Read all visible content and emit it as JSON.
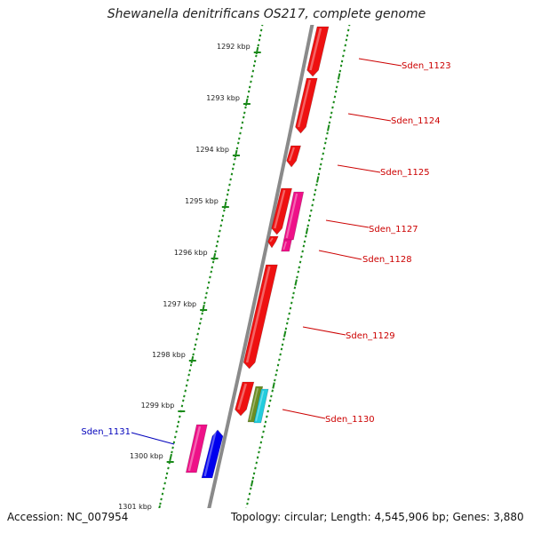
{
  "title": "Shewanella denitrificans OS217, complete genome",
  "footer": {
    "accession": "Accession: NC_007954",
    "topology": "Topology: circular; Length: 4,545,906 bp; Genes: 3,880"
  },
  "colors": {
    "genome_line": "#8a8a8a",
    "scale_marks": "#1a8a1a",
    "label_forward": "#cc0000",
    "label_reverse": "#0000bb"
  },
  "scale": {
    "ticks": [
      "1292 kbp",
      "1293 kbp",
      "1294 kbp",
      "1295 kbp",
      "1296 kbp",
      "1297 kbp",
      "1298 kbp",
      "1299 kbp",
      "1300 kbp",
      "1301 kbp"
    ]
  },
  "gene_labels": [
    {
      "text": "Sden_1123",
      "strand": "forward"
    },
    {
      "text": "Sden_1124",
      "strand": "forward"
    },
    {
      "text": "Sden_1125",
      "strand": "forward"
    },
    {
      "text": "Sden_1127",
      "strand": "forward"
    },
    {
      "text": "Sden_1128",
      "strand": "forward"
    },
    {
      "text": "Sden_1129",
      "strand": "forward"
    },
    {
      "text": "Sden_1130",
      "strand": "forward"
    },
    {
      "text": "Sden_1131",
      "strand": "reverse"
    }
  ],
  "features": [
    {
      "type": "gene",
      "color": "#ee1111"
    },
    {
      "type": "gene",
      "color": "#ee1111"
    },
    {
      "type": "gene",
      "color": "#ee1111"
    },
    {
      "type": "gene",
      "color": "#ee1111"
    },
    {
      "type": "gene",
      "color": "#ee1188"
    },
    {
      "type": "gene",
      "color": "#ee1111"
    },
    {
      "type": "gene",
      "color": "#ee1188"
    },
    {
      "type": "gene",
      "color": "#ee1111"
    },
    {
      "type": "gene",
      "color": "#ee1111"
    },
    {
      "type": "gene",
      "color": "#6b8e23"
    },
    {
      "type": "gene",
      "color": "#22ccdd"
    },
    {
      "type": "gene",
      "color": "#ee1188"
    },
    {
      "type": "gene",
      "color": "#0000ee"
    },
    {
      "type": "gene",
      "color": "#ee1111"
    },
    {
      "type": "gene",
      "color": "#ff8800"
    },
    {
      "type": "gene",
      "color": "#22aa22"
    }
  ]
}
